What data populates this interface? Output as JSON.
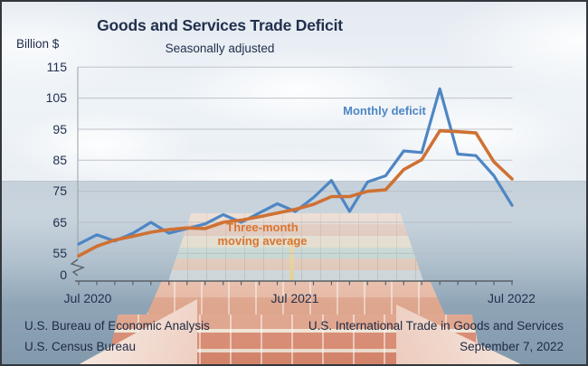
{
  "header": {
    "title": "Goods and Services Trade Deficit",
    "subtitle": "Seasonally adjusted",
    "unit_label": "Billion $"
  },
  "labels": {
    "monthly": "Monthly deficit",
    "avg_line1": "Three-month",
    "avg_line2": "moving average"
  },
  "footer": {
    "left": [
      "U.S. Bureau of Economic Analysis",
      "U.S. Census Bureau"
    ],
    "right": [
      "U.S. International Trade in Goods and Services",
      "September 7, 2022"
    ]
  },
  "colors": {
    "monthly_line": "#4e86c4",
    "average_line": "#cf7133",
    "text_navy": "#22304d",
    "gridline": "#b8bec5",
    "axis": "#596067"
  },
  "chart_data": {
    "type": "line",
    "title": "Goods and Services Trade Deficit",
    "subtitle": "Seasonally adjusted",
    "ylabel": "Billion $",
    "ylim": [
      0,
      115
    ],
    "y_axis_break": true,
    "y_ticks": [
      115,
      105,
      95,
      85,
      75,
      65,
      55,
      0
    ],
    "x_tick_labels": [
      "Jul 2020",
      "Jul 2021",
      "Jul 2022"
    ],
    "grid": "horizontal",
    "legend_position": "inline-annotations",
    "categories": [
      "Jul 2020",
      "Aug 2020",
      "Sep 2020",
      "Oct 2020",
      "Nov 2020",
      "Dec 2020",
      "Jan 2021",
      "Feb 2021",
      "Mar 2021",
      "Apr 2021",
      "May 2021",
      "Jun 2021",
      "Jul 2021",
      "Aug 2021",
      "Sep 2021",
      "Oct 2021",
      "Nov 2021",
      "Dec 2021",
      "Jan 2022",
      "Feb 2022",
      "Mar 2022",
      "Apr 2022",
      "May 2022",
      "Jun 2022",
      "Jul 2022"
    ],
    "series": [
      {
        "name": "Monthly deficit",
        "color": "#4e86c4",
        "width": 3.2,
        "values": [
          58,
          61,
          59,
          61.5,
          65,
          61.5,
          63,
          64.5,
          67.5,
          65,
          68,
          71,
          68.5,
          73,
          78.5,
          68.5,
          78,
          80,
          88,
          87.5,
          108,
          87,
          86.5,
          80,
          70.5
        ]
      },
      {
        "name": "Three-month moving average",
        "color": "#cf7133",
        "width": 3.6,
        "values": [
          54.2,
          57.3,
          59.3,
          60.5,
          61.8,
          62.7,
          63.2,
          63,
          65,
          65.7,
          66.8,
          68,
          69.2,
          70.8,
          73.3,
          73.3,
          75,
          75.5,
          82,
          85.2,
          94.5,
          94.2,
          93.8,
          84.5,
          79
        ]
      }
    ]
  }
}
